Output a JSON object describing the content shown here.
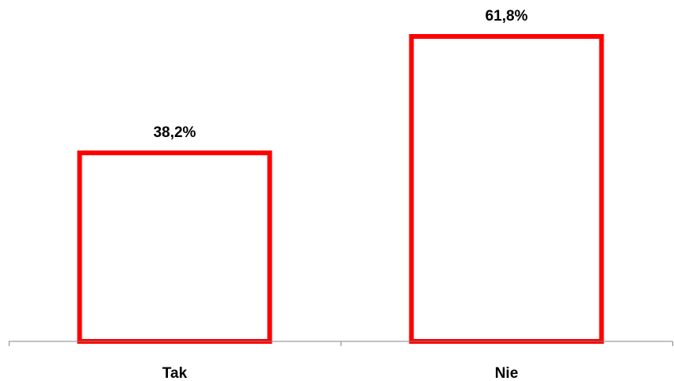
{
  "chart_data": {
    "type": "bar",
    "categories": [
      "Tak",
      "Nie"
    ],
    "values": [
      38.2,
      61.8
    ],
    "value_labels": [
      "38,2%",
      "61,8%"
    ],
    "title": "",
    "xlabel": "",
    "ylabel": "",
    "ylim": [
      0,
      65
    ],
    "grid": false,
    "legend": "none",
    "bar_fill": "#ffffff",
    "bar_outline": "#ff0000",
    "axis_color": "#868686"
  }
}
